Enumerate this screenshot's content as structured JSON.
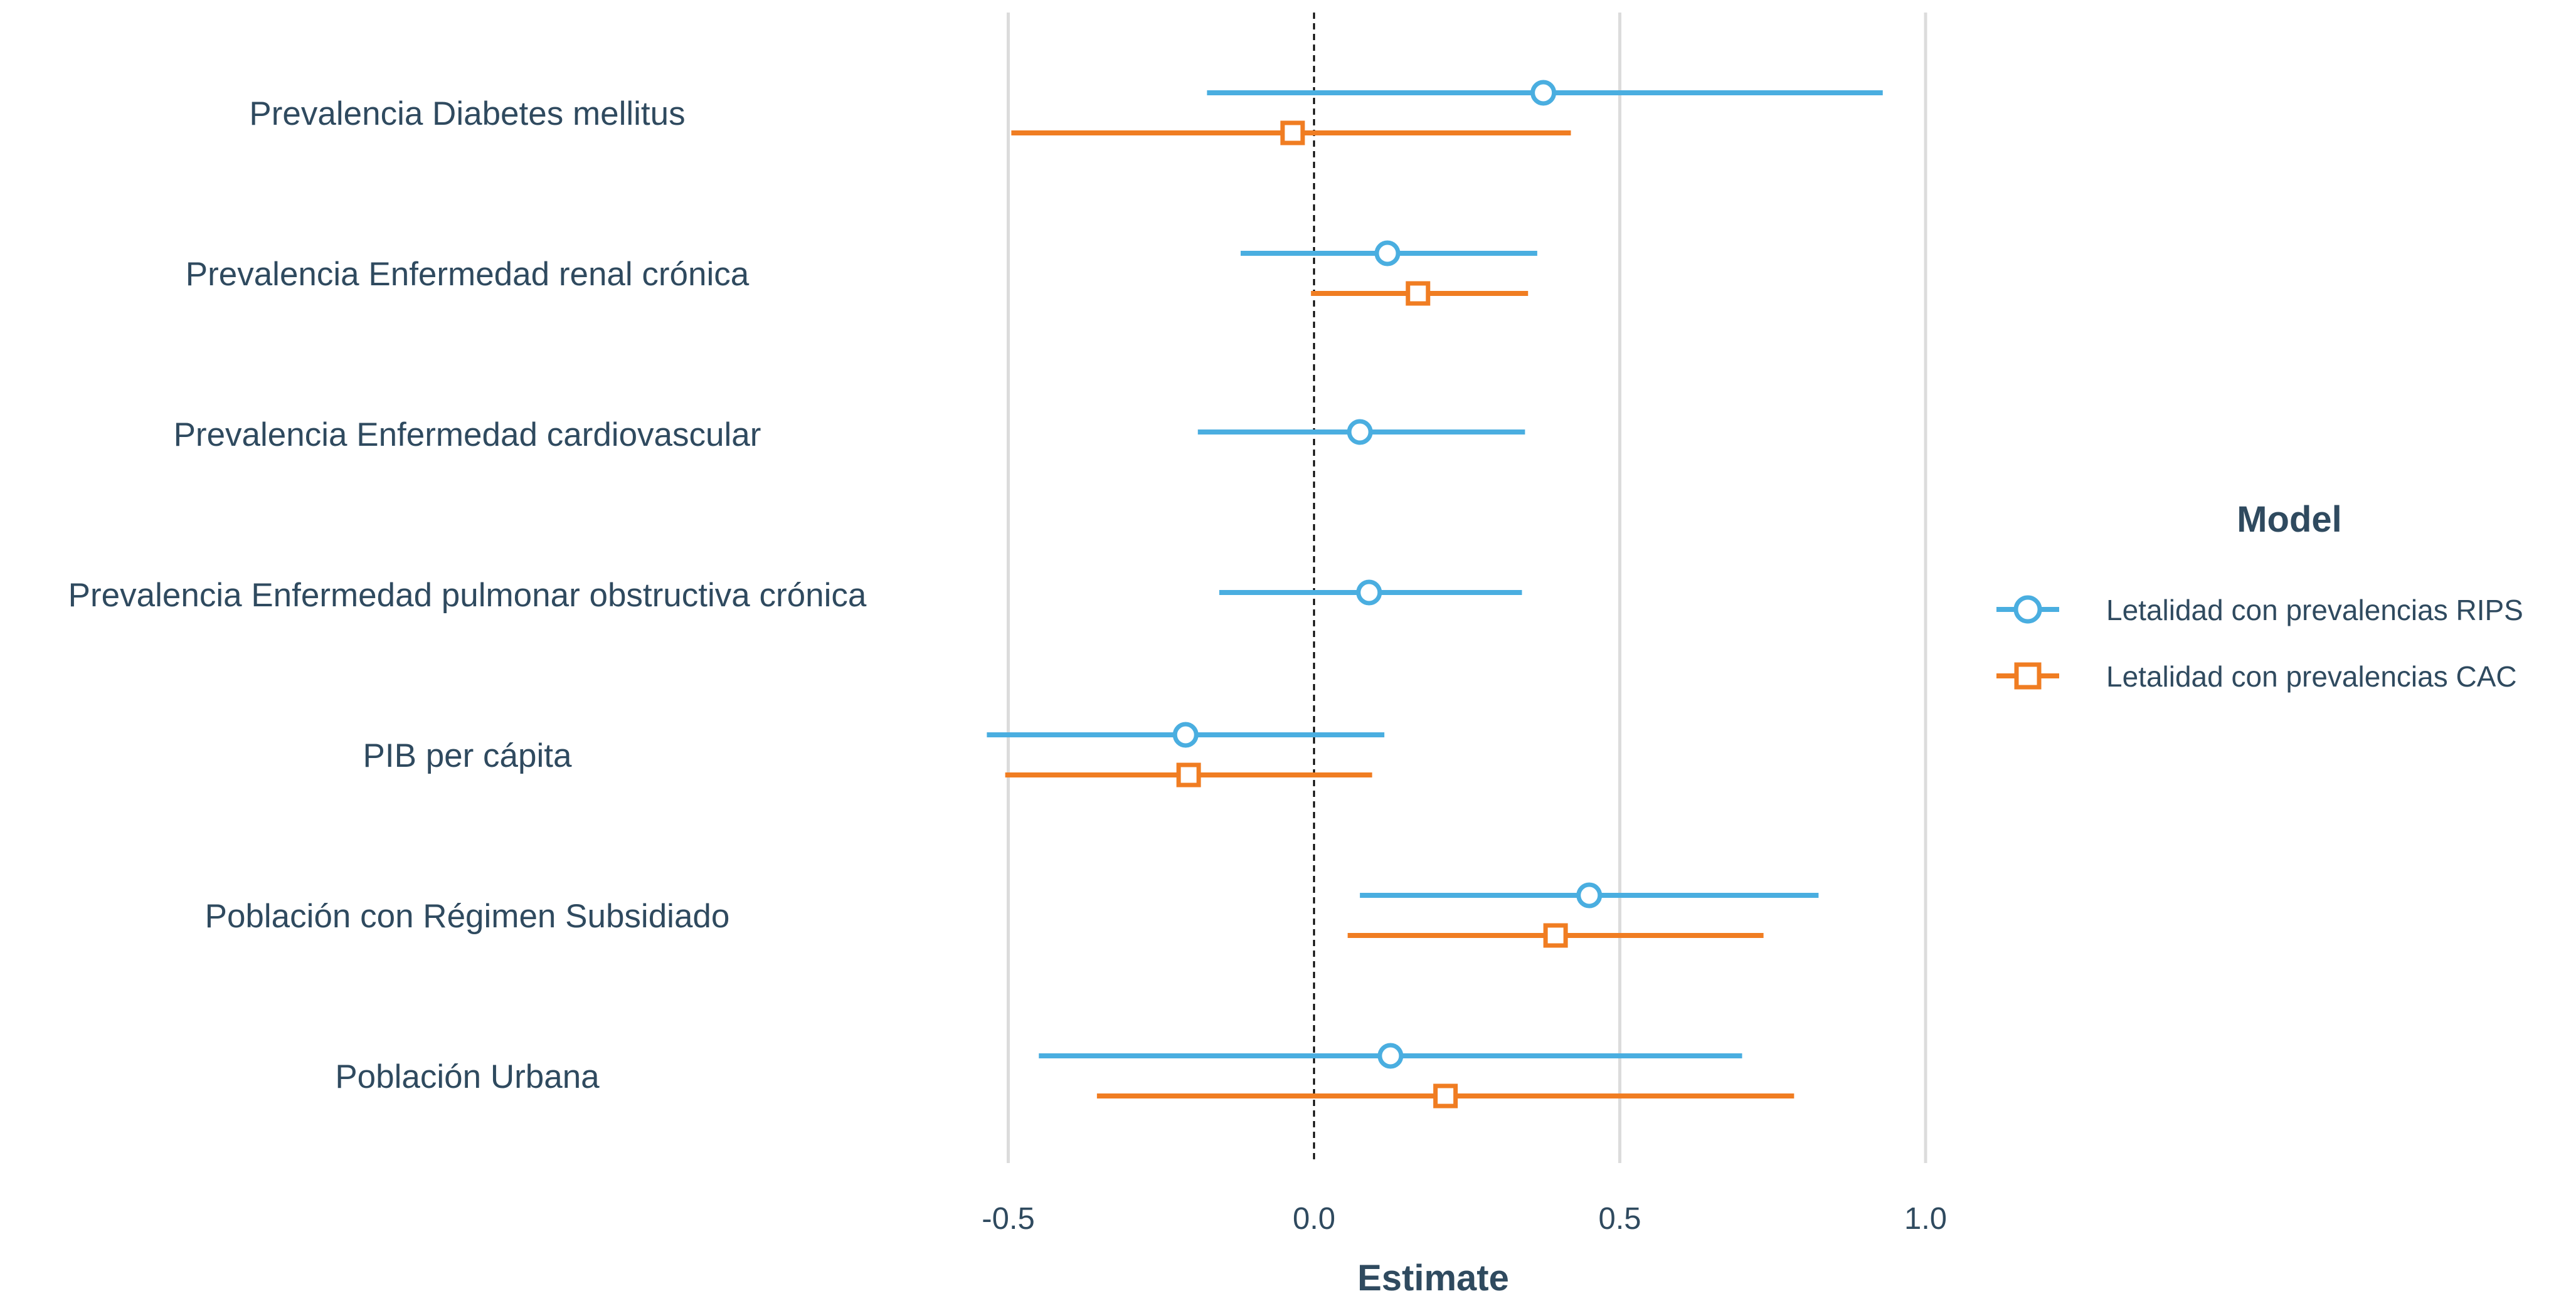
{
  "chart_data": {
    "type": "scatter",
    "subtype": "coefficient-plot",
    "xlabel": "Estimate",
    "xlim": [
      -0.62,
      1.05
    ],
    "x_ticks": [
      -0.5,
      0.0,
      0.5,
      1.0
    ],
    "x_tick_labels": [
      "-0.5",
      "0.0",
      "0.5",
      "1.0"
    ],
    "reference_line": 0,
    "grid": "vertical major",
    "legend_title": "Model",
    "legend_position": "right",
    "categories": [
      "Prevalencia Diabetes mellitus",
      "Prevalencia Enfermedad renal crónica",
      "Prevalencia Enfermedad cardiovascular",
      "Prevalencia Enfermedad pulmonar obstructiva crónica",
      "PIB per cápita",
      "Población con Régimen Subsidiado",
      "Población Urbana"
    ],
    "series": [
      {
        "name": "Letalidad con prevalencias RIPS",
        "color": "#4aaee0",
        "marker": "circle",
        "estimates": [
          0.375,
          0.12,
          0.075,
          0.09,
          -0.21,
          0.45,
          0.125
        ],
        "lower": [
          -0.175,
          -0.12,
          -0.19,
          -0.155,
          -0.535,
          0.075,
          -0.45
        ],
        "upper": [
          0.93,
          0.365,
          0.345,
          0.34,
          0.115,
          0.825,
          0.7
        ]
      },
      {
        "name": "Letalidad con prevalencias CAC",
        "color": "#f07d22",
        "marker": "square",
        "estimates": [
          -0.035,
          0.17,
          null,
          null,
          -0.205,
          0.395,
          0.215
        ],
        "lower": [
          -0.495,
          -0.005,
          null,
          null,
          -0.505,
          0.055,
          -0.355
        ],
        "upper": [
          0.42,
          0.35,
          null,
          null,
          0.095,
          0.735,
          0.785
        ]
      }
    ]
  }
}
